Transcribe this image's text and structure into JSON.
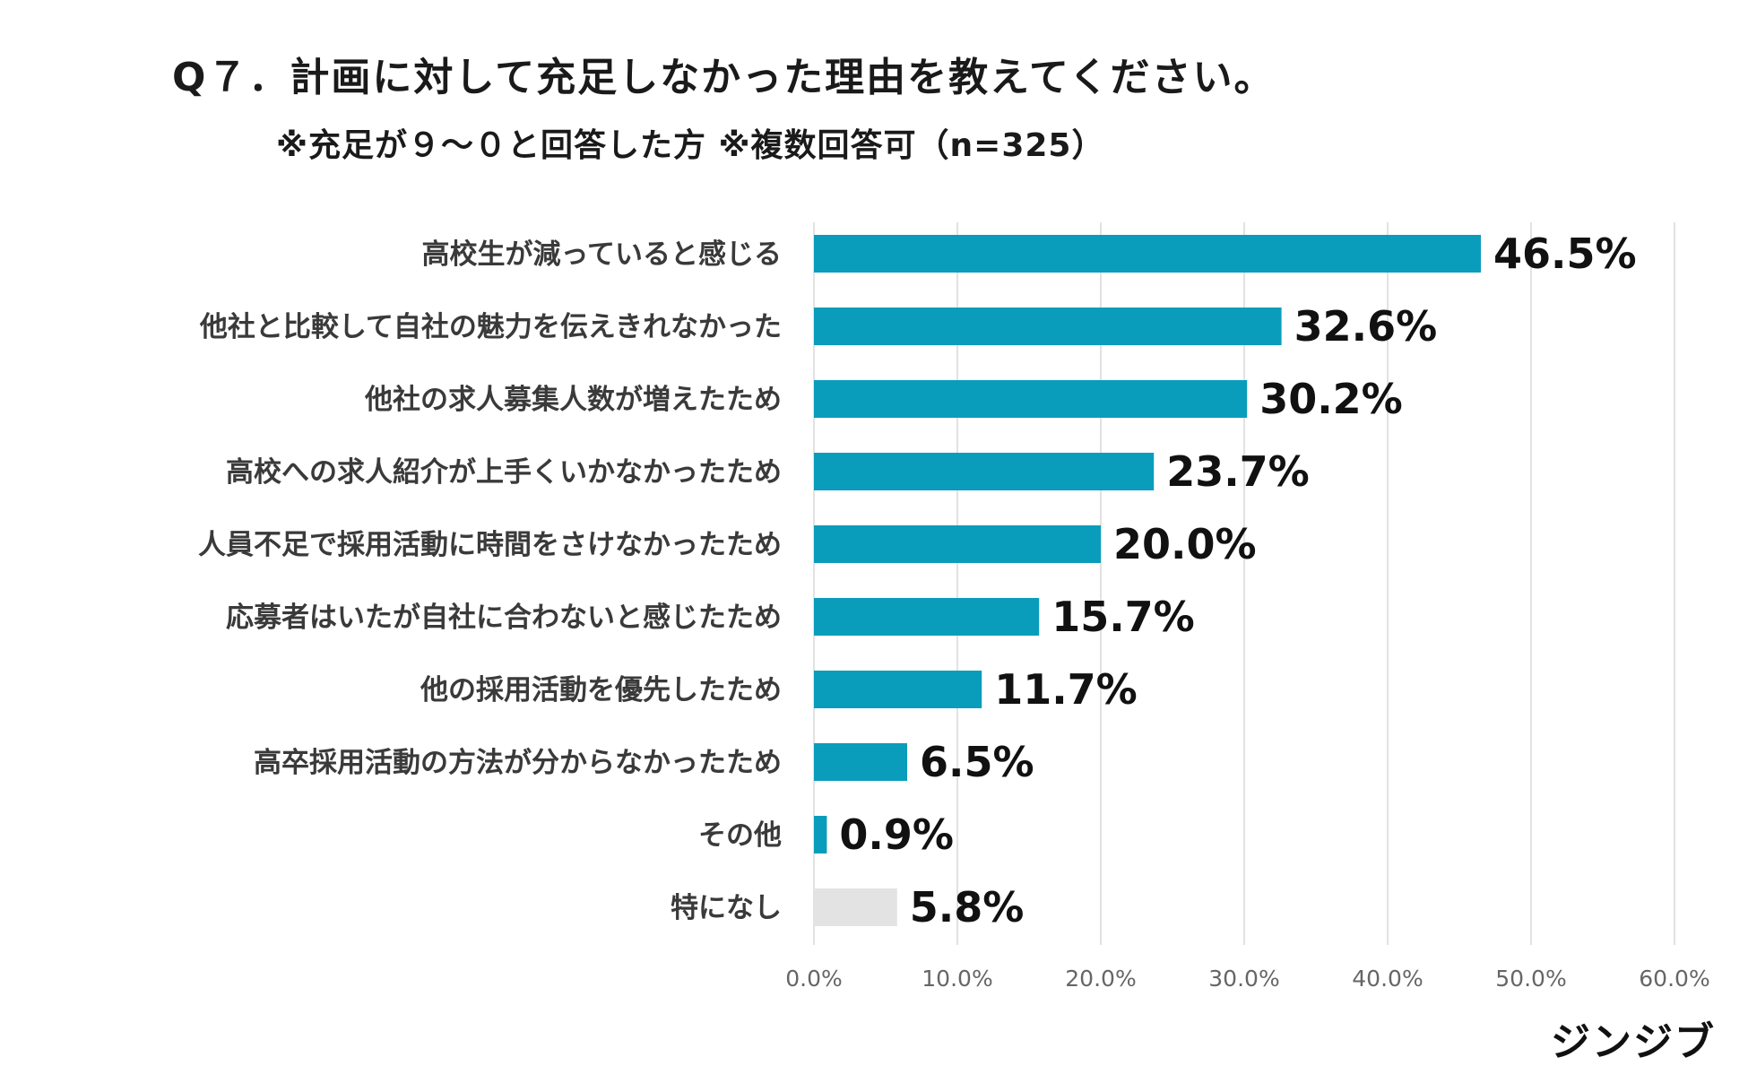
{
  "header": {
    "title": "Q７．計画に対して充足しなかった理由を教えてください。",
    "subtitle": "※充足が９～０と回答した方 ※複数回答可（n=325）"
  },
  "logo": {
    "text": "ジンジブ"
  },
  "colors": {
    "bar_primary": "#0a9dbb",
    "bar_none": "#e3e3e3",
    "grid": "#d9d9d9"
  },
  "chart_data": {
    "type": "bar",
    "orientation": "horizontal",
    "categories": [
      "高校生が減っていると感じる",
      "他社と比較して自社の魅力を伝えきれなかった",
      "他社の求人募集人数が増えたため",
      "高校への求人紹介が上手くいかなかったため",
      "人員不足で採用活動に時間をさけなかったため",
      "応募者はいたが自社に合わないと感じたため",
      "他の採用活動を優先したため",
      "高卒採用活動の方法が分からなかったため",
      "その他",
      "特になし"
    ],
    "values": [
      46.5,
      32.6,
      30.2,
      23.7,
      20.0,
      15.7,
      11.7,
      6.5,
      0.9,
      5.8
    ],
    "value_labels": [
      "46.5%",
      "32.6%",
      "30.2%",
      "23.7%",
      "20.0%",
      "15.7%",
      "11.7%",
      "6.5%",
      "0.9%",
      "5.8%"
    ],
    "highlight_none_index": 9,
    "xlim": [
      0,
      60
    ],
    "xticks": [
      0,
      10,
      20,
      30,
      40,
      50,
      60
    ],
    "xtick_labels": [
      "0.0%",
      "10.0%",
      "20.0%",
      "30.0%",
      "40.0%",
      "50.0%",
      "60.0%"
    ],
    "grid": true,
    "xlabel": "",
    "ylabel": ""
  }
}
